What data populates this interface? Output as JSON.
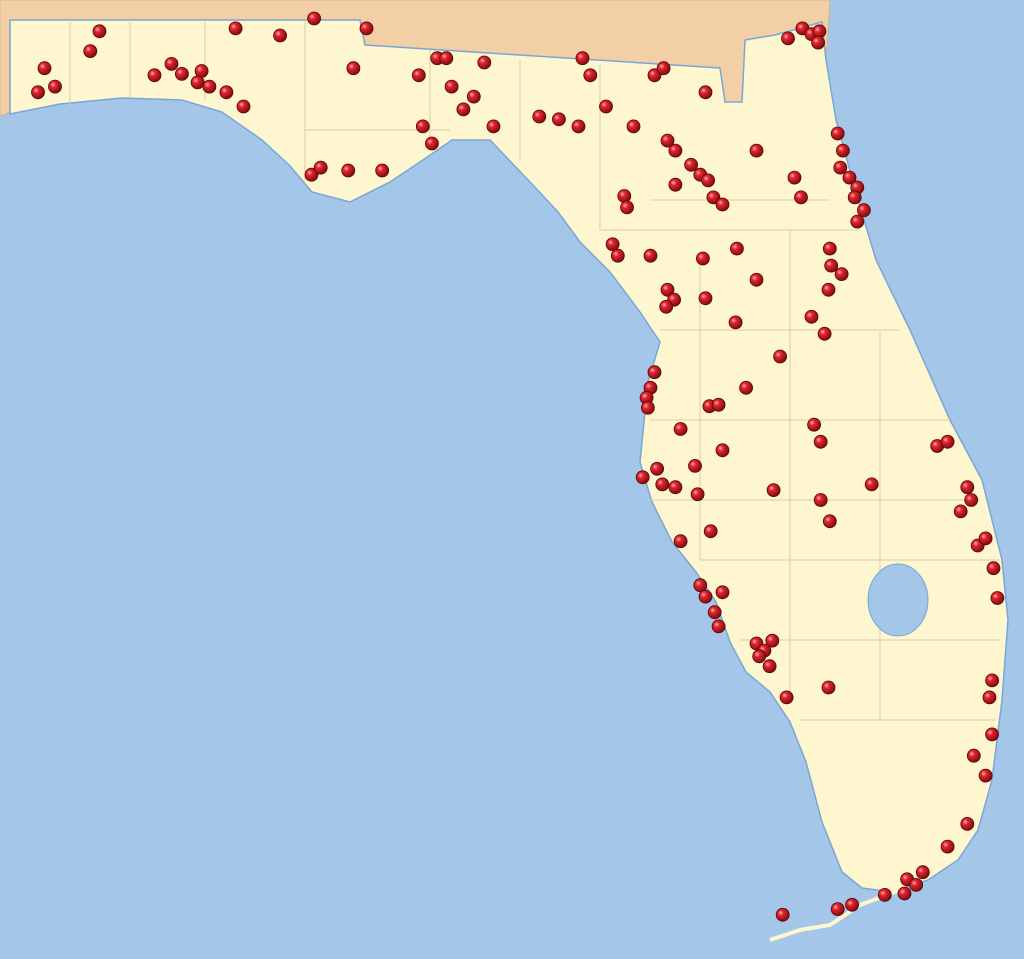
{
  "map": {
    "region": "Florida",
    "colors": {
      "ocean": "#a4c6e8",
      "land": "#fdf6cf",
      "neighbor_states": "#f3cfa6",
      "county_lines": "#d9cfa8",
      "marker": "#c4161c",
      "lake": "#a4c6e8"
    },
    "marker_icon": "red-sphere-pin",
    "markers": [
      [
        30.83,
        -86.89
      ],
      [
        30.69,
        -86.96
      ],
      [
        30.57,
        -87.31
      ],
      [
        30.44,
        -87.23
      ],
      [
        30.4,
        -87.36
      ],
      [
        30.85,
        -85.85
      ],
      [
        30.8,
        -85.51
      ],
      [
        30.92,
        -85.25
      ],
      [
        30.85,
        -84.85
      ],
      [
        30.52,
        -86.47
      ],
      [
        30.6,
        -86.34
      ],
      [
        30.53,
        -86.26
      ],
      [
        30.55,
        -86.11
      ],
      [
        30.47,
        -86.14
      ],
      [
        30.44,
        -86.05
      ],
      [
        30.4,
        -85.92
      ],
      [
        30.3,
        -85.79
      ],
      [
        30.57,
        -84.95
      ],
      [
        30.52,
        -84.45
      ],
      [
        30.64,
        -84.31
      ],
      [
        30.64,
        -84.24
      ],
      [
        30.61,
        -83.95
      ],
      [
        30.44,
        -84.2
      ],
      [
        30.37,
        -84.03
      ],
      [
        30.28,
        -84.11
      ],
      [
        30.16,
        -84.42
      ],
      [
        30.04,
        -84.35
      ],
      [
        29.82,
        -85.27
      ],
      [
        29.87,
        -85.2
      ],
      [
        29.85,
        -84.99
      ],
      [
        29.85,
        -84.73
      ],
      [
        30.16,
        -83.88
      ],
      [
        30.23,
        -83.53
      ],
      [
        30.21,
        -83.38
      ],
      [
        30.16,
        -83.23
      ],
      [
        30.3,
        -83.02
      ],
      [
        30.16,
        -82.81
      ],
      [
        30.64,
        -83.2
      ],
      [
        30.52,
        -83.14
      ],
      [
        30.52,
        -82.65
      ],
      [
        30.57,
        -82.58
      ],
      [
        30.4,
        -82.26
      ],
      [
        30.78,
        -81.63
      ],
      [
        30.85,
        -81.52
      ],
      [
        30.81,
        -81.45
      ],
      [
        30.83,
        -81.39
      ],
      [
        30.75,
        -81.4
      ],
      [
        30.06,
        -82.55
      ],
      [
        29.99,
        -82.49
      ],
      [
        29.89,
        -82.37
      ],
      [
        29.82,
        -82.3
      ],
      [
        29.78,
        -82.24
      ],
      [
        29.75,
        -82.49
      ],
      [
        29.66,
        -82.2
      ],
      [
        29.61,
        -82.13
      ],
      [
        29.67,
        -82.88
      ],
      [
        29.59,
        -82.86
      ],
      [
        29.99,
        -81.87
      ],
      [
        29.8,
        -81.58
      ],
      [
        29.66,
        -81.53
      ],
      [
        30.11,
        -81.25
      ],
      [
        29.99,
        -81.21
      ],
      [
        29.87,
        -81.23
      ],
      [
        29.8,
        -81.16
      ],
      [
        29.73,
        -81.1
      ],
      [
        29.66,
        -81.12
      ],
      [
        29.57,
        -81.05
      ],
      [
        29.49,
        -81.1
      ],
      [
        29.33,
        -82.97
      ],
      [
        29.25,
        -82.93
      ],
      [
        29.25,
        -82.68
      ],
      [
        29.23,
        -82.28
      ],
      [
        29.3,
        -82.02
      ],
      [
        29.08,
        -81.87
      ],
      [
        29.3,
        -81.31
      ],
      [
        29.18,
        -81.3
      ],
      [
        29.12,
        -81.22
      ],
      [
        29.01,
        -81.32
      ],
      [
        29.01,
        -82.55
      ],
      [
        28.94,
        -82.5
      ],
      [
        28.89,
        -82.56
      ],
      [
        28.95,
        -82.26
      ],
      [
        28.78,
        -82.03
      ],
      [
        28.82,
        -81.45
      ],
      [
        28.7,
        -81.35
      ],
      [
        28.54,
        -81.69
      ],
      [
        28.43,
        -82.65
      ],
      [
        28.32,
        -82.68
      ],
      [
        28.25,
        -82.71
      ],
      [
        28.18,
        -82.7
      ],
      [
        28.32,
        -81.95
      ],
      [
        28.19,
        -82.23
      ],
      [
        28.2,
        -82.16
      ],
      [
        28.03,
        -82.45
      ],
      [
        27.88,
        -82.13
      ],
      [
        28.06,
        -81.43
      ],
      [
        27.94,
        -81.38
      ],
      [
        27.91,
        -80.49
      ],
      [
        27.94,
        -80.41
      ],
      [
        27.69,
        -82.74
      ],
      [
        27.75,
        -82.63
      ],
      [
        27.64,
        -82.59
      ],
      [
        27.62,
        -82.49
      ],
      [
        27.77,
        -82.34
      ],
      [
        27.57,
        -82.32
      ],
      [
        27.6,
        -81.74
      ],
      [
        27.53,
        -81.38
      ],
      [
        27.38,
        -81.31
      ],
      [
        27.64,
        -80.99
      ],
      [
        27.62,
        -80.26
      ],
      [
        27.53,
        -80.23
      ],
      [
        27.45,
        -80.31
      ],
      [
        27.24,
        -82.45
      ],
      [
        27.31,
        -82.22
      ],
      [
        27.21,
        -80.18
      ],
      [
        27.26,
        -80.12
      ],
      [
        27.05,
        -80.06
      ],
      [
        26.84,
        -80.03
      ],
      [
        26.93,
        -82.3
      ],
      [
        26.85,
        -82.26
      ],
      [
        26.88,
        -82.13
      ],
      [
        26.74,
        -82.19
      ],
      [
        26.64,
        -82.16
      ],
      [
        26.52,
        -81.87
      ],
      [
        26.54,
        -81.75
      ],
      [
        26.47,
        -81.81
      ],
      [
        26.43,
        -81.85
      ],
      [
        26.36,
        -81.77
      ],
      [
        26.14,
        -81.64
      ],
      [
        26.21,
        -81.32
      ],
      [
        26.26,
        -80.07
      ],
      [
        26.14,
        -80.09
      ],
      [
        25.88,
        -80.07
      ],
      [
        25.73,
        -80.21
      ],
      [
        25.59,
        -80.12
      ],
      [
        25.25,
        -80.26
      ],
      [
        25.09,
        -80.41
      ],
      [
        24.91,
        -80.6
      ],
      [
        24.86,
        -80.72
      ],
      [
        24.82,
        -80.65
      ],
      [
        24.76,
        -80.74
      ],
      [
        24.75,
        -80.89
      ],
      [
        24.68,
        -81.14
      ],
      [
        24.65,
        -81.25
      ],
      [
        24.61,
        -81.67
      ]
    ]
  }
}
